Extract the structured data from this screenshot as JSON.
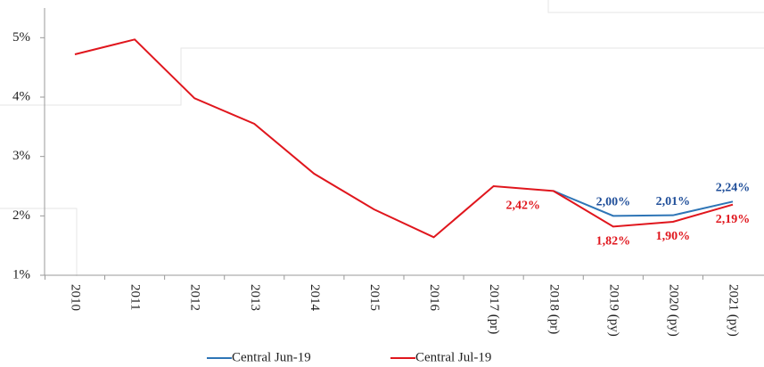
{
  "chart_data": {
    "type": "line",
    "categories": [
      "2010",
      "2011",
      "2012",
      "2013",
      "2014",
      "2015",
      "2016",
      "2017 (pr)",
      "2018 (pr)",
      "2019 (py)",
      "2020 (py)",
      "2021 (py)"
    ],
    "series": [
      {
        "name": "Central Jun-19",
        "color": "#2e75b6",
        "values": [
          null,
          null,
          null,
          null,
          null,
          null,
          null,
          null,
          2.42,
          2.0,
          2.01,
          2.24
        ],
        "value_labels": [
          null,
          null,
          null,
          null,
          null,
          null,
          null,
          null,
          null,
          "2,00%",
          "2,01%",
          "2,24%"
        ],
        "label_color": "#1f4e99"
      },
      {
        "name": "Central Jul-19",
        "color": "#e0161d",
        "values": [
          4.72,
          4.97,
          3.98,
          3.55,
          2.71,
          2.11,
          1.64,
          2.5,
          2.42,
          1.82,
          1.9,
          2.19
        ],
        "value_labels": [
          null,
          null,
          null,
          null,
          null,
          null,
          null,
          null,
          "2,42%",
          "1,82%",
          "1,90%",
          "2,19%"
        ],
        "label_color": "#e0161d"
      }
    ],
    "ylim": [
      1,
      5.5
    ],
    "yticks": [
      {
        "value": 1,
        "label": "1%"
      },
      {
        "value": 2,
        "label": "2%"
      },
      {
        "value": 3,
        "label": "3%"
      },
      {
        "value": 4,
        "label": "4%"
      },
      {
        "value": 5,
        "label": "5%"
      }
    ],
    "grid": false,
    "legend": "bottom"
  }
}
